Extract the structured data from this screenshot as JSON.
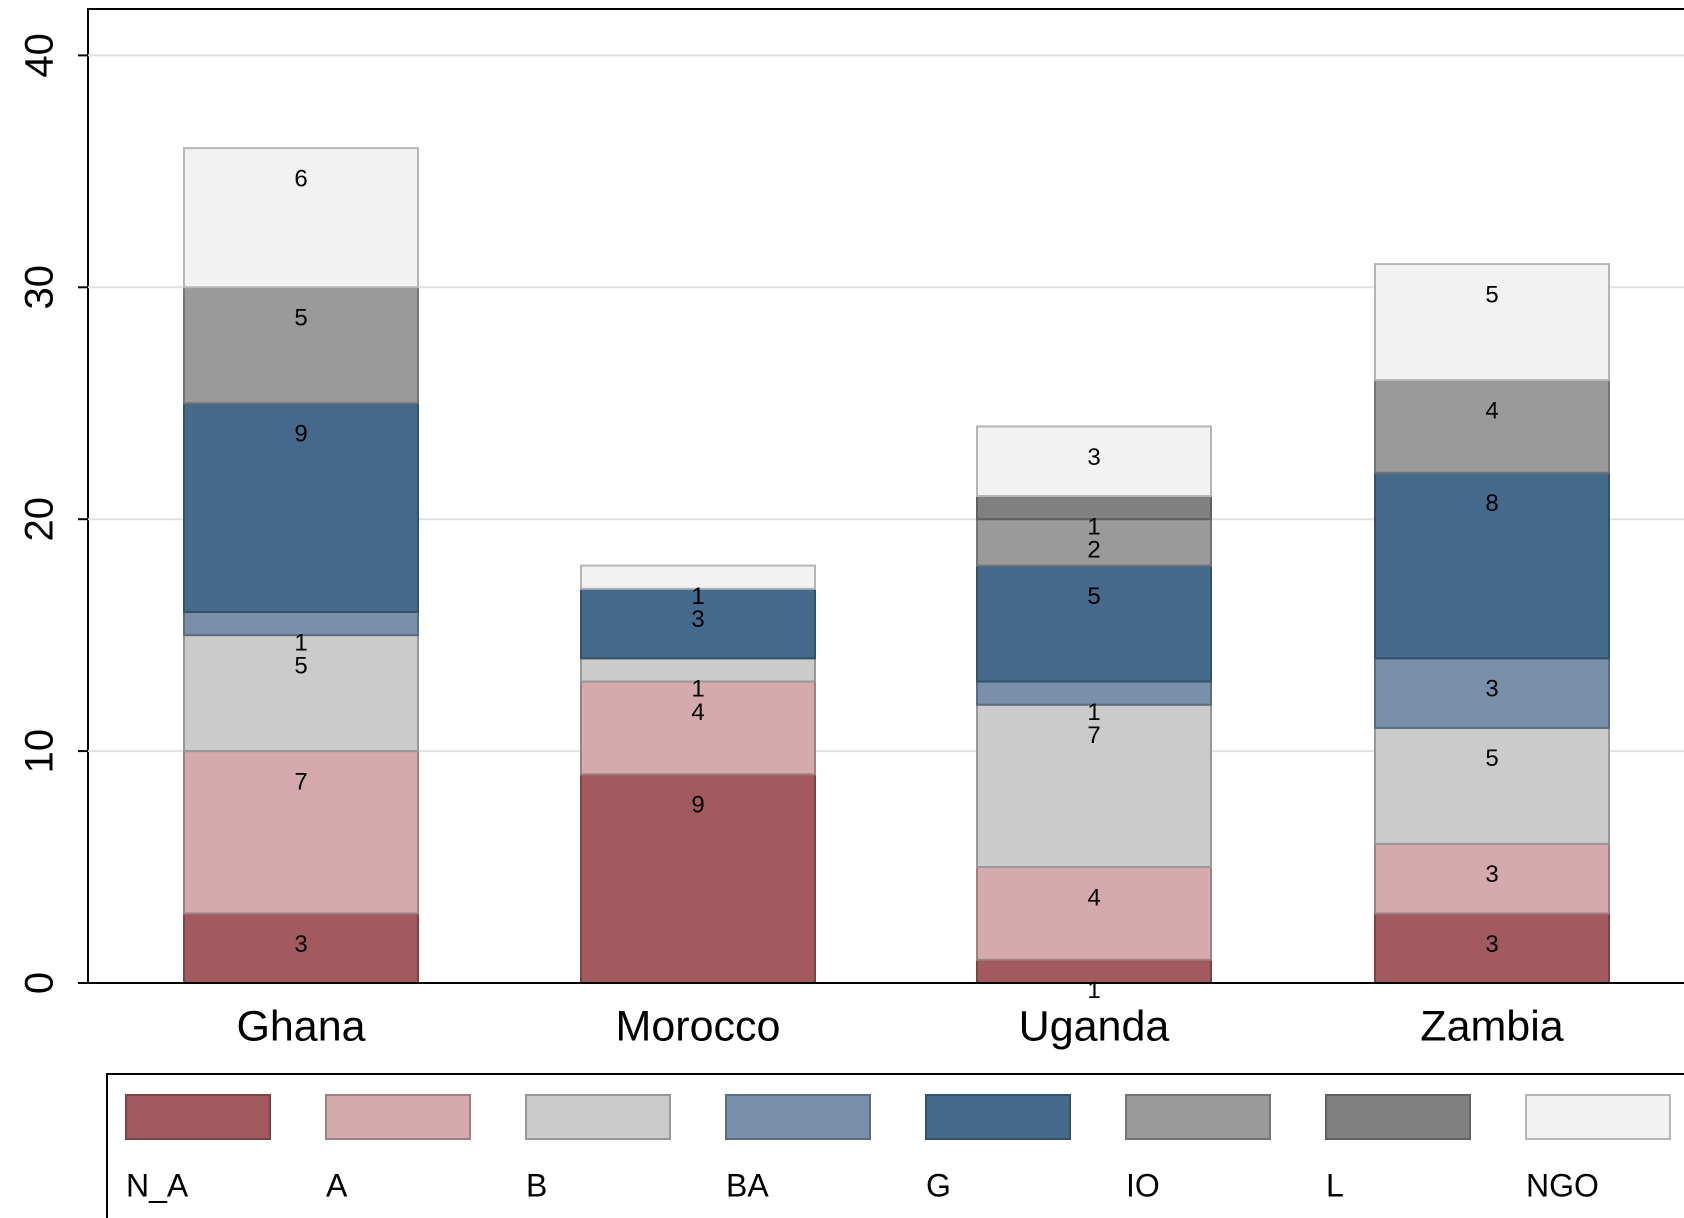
{
  "chart_data": {
    "type": "stacked_bar",
    "categories": [
      "Ghana",
      "Morocco",
      "Uganda",
      "Zambia"
    ],
    "series": [
      {
        "name": "N_A",
        "color": "#a35a5f",
        "values": [
          3,
          9,
          1,
          3
        ]
      },
      {
        "name": "A",
        "color": "#d4aaae",
        "values": [
          7,
          4,
          4,
          3
        ]
      },
      {
        "name": "B",
        "color": "#cbcbcb",
        "values": [
          5,
          1,
          7,
          5
        ]
      },
      {
        "name": "BA",
        "color": "#7890aa",
        "values": [
          1,
          null,
          1,
          3
        ]
      },
      {
        "name": "G",
        "color": "#466a8c",
        "values": [
          9,
          3,
          5,
          8
        ]
      },
      {
        "name": "IO",
        "color": "#9a9a9a",
        "values": [
          5,
          null,
          2,
          4
        ]
      },
      {
        "name": "L",
        "color": "#808080",
        "values": [
          null,
          null,
          1,
          null
        ]
      },
      {
        "name": "NGO",
        "color": "#f2f2f2",
        "values": [
          6,
          1,
          3,
          5
        ]
      }
    ],
    "ylim": [
      0,
      42
    ],
    "yticks": [
      0,
      10,
      20,
      30,
      40
    ],
    "grid": true,
    "legend": "bottom"
  }
}
